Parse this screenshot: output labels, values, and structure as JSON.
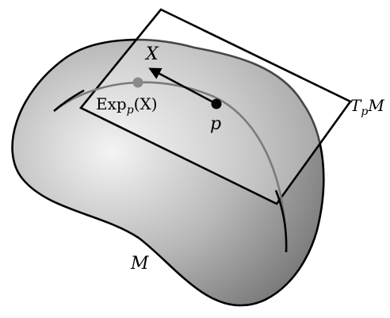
{
  "labels": {
    "vector": "X",
    "point": "p",
    "exp_prefix": "Exp",
    "exp_sub": "p",
    "exp_arg": "(X)",
    "tangent_T": "T",
    "tangent_sub": "p",
    "tangent_M": "M",
    "manifold": "M"
  },
  "colors": {
    "manifold_light": "#f4f4f4",
    "manifold_dark": "#7a7a7a",
    "outline": "#000000",
    "geodesic_front": "#000000",
    "geodesic_behind": "#777777",
    "exp_point": "#8a8a8a",
    "point": "#000000"
  }
}
